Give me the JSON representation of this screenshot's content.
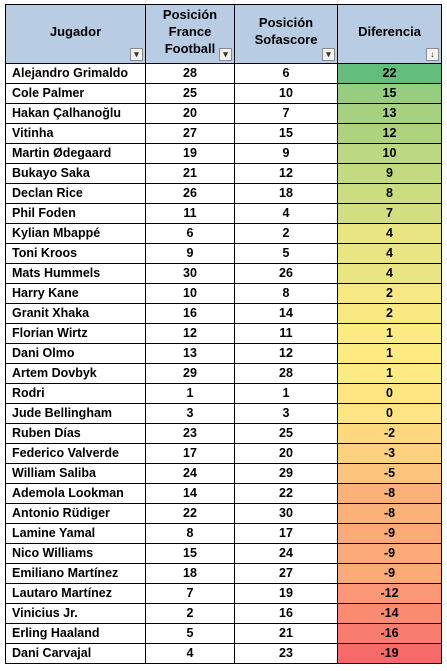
{
  "headers": {
    "jugador": "Jugador",
    "france_football": "Posición France Football",
    "sofascore": "Posición Sofascore",
    "diferencia": "Diferencia"
  },
  "filter_icons": {
    "jugador": "dropdown-arrow-icon",
    "france_football": "dropdown-arrow-icon",
    "sofascore": "dropdown-arrow-icon",
    "diferencia": "sort-descending-icon"
  },
  "scale_colors": {
    "high": "#63be7b",
    "mid": "#ffeb84",
    "low": "#f8696b"
  },
  "header_color": "#b8cce4",
  "rows": [
    {
      "jugador": "Alejandro Grimaldo",
      "ff": "28",
      "ss": "6",
      "dif": "22"
    },
    {
      "jugador": "Cole Palmer",
      "ff": "25",
      "ss": "10",
      "dif": "15"
    },
    {
      "jugador": "Hakan Çalhanoğlu",
      "ff": "20",
      "ss": "7",
      "dif": "13"
    },
    {
      "jugador": "Vitinha",
      "ff": "27",
      "ss": "15",
      "dif": "12"
    },
    {
      "jugador": "Martin Ødegaard",
      "ff": "19",
      "ss": "9",
      "dif": "10"
    },
    {
      "jugador": "Bukayo Saka",
      "ff": "21",
      "ss": "12",
      "dif": "9"
    },
    {
      "jugador": "Declan Rice",
      "ff": "26",
      "ss": "18",
      "dif": "8"
    },
    {
      "jugador": "Phil Foden",
      "ff": "11",
      "ss": "4",
      "dif": "7"
    },
    {
      "jugador": "Kylian Mbappé",
      "ff": "6",
      "ss": "2",
      "dif": "4"
    },
    {
      "jugador": "Toni Kroos",
      "ff": "9",
      "ss": "5",
      "dif": "4"
    },
    {
      "jugador": "Mats Hummels",
      "ff": "30",
      "ss": "26",
      "dif": "4"
    },
    {
      "jugador": "Harry Kane",
      "ff": "10",
      "ss": "8",
      "dif": "2"
    },
    {
      "jugador": "Granit Xhaka",
      "ff": "16",
      "ss": "14",
      "dif": "2"
    },
    {
      "jugador": "Florian Wirtz",
      "ff": "12",
      "ss": "11",
      "dif": "1"
    },
    {
      "jugador": "Dani Olmo",
      "ff": "13",
      "ss": "12",
      "dif": "1"
    },
    {
      "jugador": "Artem Dovbyk",
      "ff": "29",
      "ss": "28",
      "dif": "1"
    },
    {
      "jugador": "Rodri",
      "ff": "1",
      "ss": "1",
      "dif": "0"
    },
    {
      "jugador": "Jude Bellingham",
      "ff": "3",
      "ss": "3",
      "dif": "0"
    },
    {
      "jugador": "Ruben Días",
      "ff": "23",
      "ss": "25",
      "dif": "-2"
    },
    {
      "jugador": "Federico Valverde",
      "ff": "17",
      "ss": "20",
      "dif": "-3"
    },
    {
      "jugador": "William Saliba",
      "ff": "24",
      "ss": "29",
      "dif": "-5"
    },
    {
      "jugador": "Ademola Lookman",
      "ff": "14",
      "ss": "22",
      "dif": "-8"
    },
    {
      "jugador": "Antonio Rüdiger",
      "ff": "22",
      "ss": "30",
      "dif": "-8"
    },
    {
      "jugador": "Lamine Yamal",
      "ff": "8",
      "ss": "17",
      "dif": "-9"
    },
    {
      "jugador": "Nico Williams",
      "ff": "15",
      "ss": "24",
      "dif": "-9"
    },
    {
      "jugador": "Emiliano Martínez",
      "ff": "18",
      "ss": "27",
      "dif": "-9"
    },
    {
      "jugador": "Lautaro Martínez",
      "ff": "7",
      "ss": "19",
      "dif": "-12"
    },
    {
      "jugador": "Vinicius Jr.",
      "ff": "2",
      "ss": "16",
      "dif": "-14"
    },
    {
      "jugador": "Erling Haaland",
      "ff": "5",
      "ss": "21",
      "dif": "-16"
    },
    {
      "jugador": "Dani Carvajal",
      "ff": "4",
      "ss": "23",
      "dif": "-19"
    }
  ]
}
